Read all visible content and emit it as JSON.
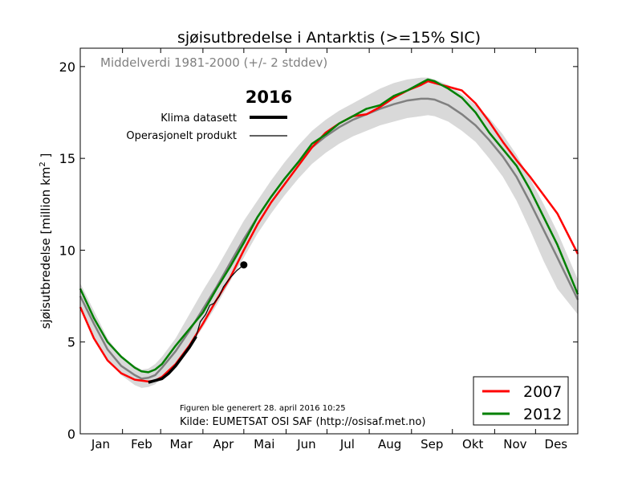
{
  "chart_data": {
    "type": "line",
    "title": "sjøisutbredelse i Antarktis (>=15% SIC)",
    "ylabel": "sjøisutbredelse [million km² ]",
    "ylabel_main": "sjøisutbredelse [million km",
    "ylabel_sup": "2",
    "ylabel_end": " ]",
    "xlabel": "",
    "xlim": [
      0,
      365
    ],
    "ylim": [
      0,
      21
    ],
    "grid": false,
    "yticks": [
      0,
      5,
      10,
      15,
      20
    ],
    "months": [
      "Jan",
      "Feb",
      "Mar",
      "Apr",
      "Mai",
      "Jun",
      "Jul",
      "Aug",
      "Sep",
      "Okt",
      "Nov",
      "Des"
    ],
    "month_centers": [
      15,
      45,
      74,
      105,
      135,
      166,
      196,
      227,
      258,
      288,
      319,
      349
    ],
    "mean_label": "Middelverdi 1981-2000 (+/- 2 stddev)",
    "mean_series": {
      "name": "Middelverdi 1981-2000",
      "color": "#808080",
      "x": [
        0,
        10,
        20,
        30,
        40,
        45,
        50,
        55,
        60,
        70,
        80,
        90,
        100,
        110,
        120,
        130,
        140,
        150,
        160,
        170,
        180,
        190,
        200,
        210,
        220,
        230,
        240,
        250,
        255,
        260,
        270,
        280,
        290,
        300,
        310,
        320,
        330,
        340,
        350,
        365
      ],
      "values": [
        7.5,
        6.0,
        4.6,
        3.7,
        3.2,
        3.0,
        3.05,
        3.2,
        3.6,
        4.5,
        5.6,
        6.8,
        8.0,
        9.3,
        10.6,
        11.8,
        12.9,
        13.9,
        14.8,
        15.6,
        16.2,
        16.7,
        17.1,
        17.4,
        17.7,
        17.95,
        18.15,
        18.25,
        18.25,
        18.2,
        17.9,
        17.4,
        16.8,
        16.0,
        15.1,
        14.0,
        12.6,
        11.1,
        9.6,
        7.3
      ],
      "band_lower": [
        6.8,
        5.3,
        4.0,
        3.2,
        2.65,
        2.5,
        2.55,
        2.7,
        3.05,
        3.8,
        4.7,
        5.8,
        7.0,
        8.3,
        9.6,
        10.9,
        12.0,
        13.0,
        13.9,
        14.7,
        15.3,
        15.8,
        16.2,
        16.5,
        16.8,
        17.0,
        17.2,
        17.3,
        17.35,
        17.3,
        17.0,
        16.5,
        15.9,
        15.0,
        14.0,
        12.7,
        11.1,
        9.4,
        7.9,
        6.5
      ],
      "band_upper": [
        8.2,
        6.7,
        5.2,
        4.2,
        3.7,
        3.5,
        3.55,
        3.8,
        4.2,
        5.2,
        6.5,
        7.8,
        9.0,
        10.3,
        11.6,
        12.7,
        13.8,
        14.8,
        15.7,
        16.5,
        17.1,
        17.6,
        18.0,
        18.4,
        18.8,
        19.1,
        19.3,
        19.4,
        19.4,
        19.3,
        19.0,
        18.5,
        17.9,
        17.2,
        16.3,
        15.2,
        13.9,
        12.5,
        11.0,
        8.4
      ]
    },
    "series": [
      {
        "name": "2007",
        "color": "#ff0000",
        "x": [
          0,
          10,
          20,
          30,
          40,
          45,
          50,
          55,
          60,
          70,
          80,
          90,
          100,
          110,
          120,
          130,
          140,
          150,
          160,
          170,
          180,
          190,
          200,
          210,
          220,
          230,
          240,
          250,
          255,
          260,
          270,
          280,
          290,
          300,
          310,
          320,
          330,
          340,
          350,
          365
        ],
        "values": [
          6.9,
          5.2,
          4.0,
          3.3,
          2.95,
          2.9,
          2.85,
          2.9,
          3.1,
          3.8,
          4.8,
          6.0,
          7.3,
          8.5,
          10.0,
          11.4,
          12.6,
          13.6,
          14.6,
          15.6,
          16.4,
          16.9,
          17.3,
          17.4,
          17.8,
          18.3,
          18.7,
          19.0,
          19.2,
          19.1,
          18.9,
          18.7,
          18.0,
          17.0,
          15.9,
          14.9,
          14.0,
          13.0,
          12.0,
          9.8
        ]
      },
      {
        "name": "2012",
        "color": "#008000",
        "x": [
          0,
          10,
          20,
          30,
          40,
          45,
          50,
          55,
          60,
          70,
          80,
          90,
          100,
          110,
          120,
          130,
          140,
          150,
          160,
          170,
          180,
          190,
          200,
          210,
          220,
          230,
          240,
          250,
          255,
          260,
          270,
          280,
          290,
          300,
          310,
          320,
          330,
          340,
          350,
          365
        ],
        "values": [
          7.9,
          6.3,
          5.0,
          4.2,
          3.6,
          3.4,
          3.35,
          3.5,
          3.8,
          4.8,
          5.7,
          6.6,
          7.9,
          9.1,
          10.4,
          11.8,
          12.9,
          13.9,
          14.8,
          15.8,
          16.3,
          16.9,
          17.3,
          17.7,
          17.9,
          18.4,
          18.7,
          19.1,
          19.3,
          19.2,
          18.8,
          18.3,
          17.5,
          16.4,
          15.5,
          14.6,
          13.3,
          11.8,
          10.3,
          7.6
        ]
      },
      {
        "name": "Klima datasett",
        "color": "#000000",
        "x": [
          50,
          55,
          60,
          65,
          70,
          75,
          80,
          85
        ],
        "values": [
          2.8,
          2.9,
          3.0,
          3.3,
          3.7,
          4.2,
          4.7,
          5.3
        ]
      },
      {
        "name": "Operasjonelt produkt",
        "color": "#000000",
        "x": [
          85,
          88,
          92,
          95,
          98,
          102,
          105,
          110,
          115,
          120
        ],
        "values": [
          5.3,
          6.1,
          6.5,
          7.0,
          7.1,
          7.5,
          8.0,
          8.5,
          8.9,
          9.2
        ]
      }
    ],
    "inner_legend": {
      "title": "2016",
      "items": [
        "Klima datasett",
        "Operasjonelt produkt"
      ]
    },
    "legend": {
      "placement": "lower-right",
      "items": [
        "2007",
        "2012"
      ]
    },
    "annotations": {
      "generated": "Figuren ble generert 28. april 2016 10:25",
      "source": "Kilde: EUMETSAT OSI SAF (http://osisaf.met.no)"
    }
  }
}
